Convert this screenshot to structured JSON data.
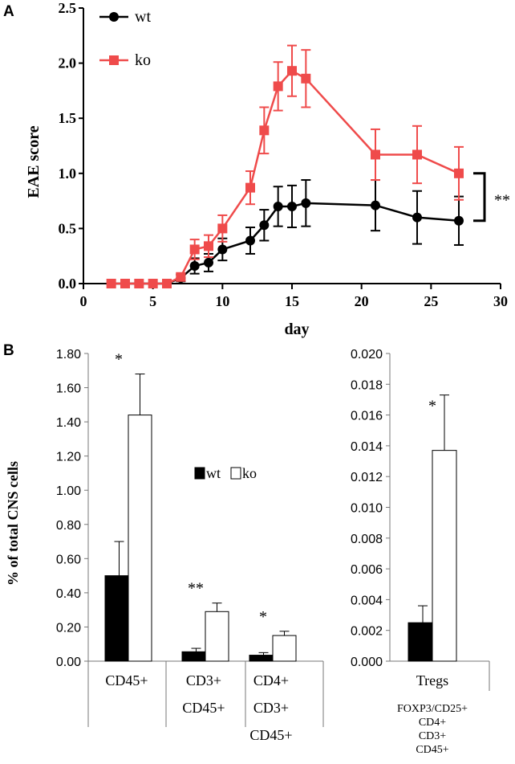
{
  "panel_labels": {
    "a": "A",
    "b": "B"
  },
  "colors": {
    "wt": "#000000",
    "ko": "#ef4b4b",
    "ko_bar": "#ffffff"
  },
  "chart_data": [
    {
      "id": "panel-a",
      "type": "line",
      "xlabel": "day",
      "ylabel": "EAE score",
      "xlim": [
        0,
        30
      ],
      "ylim": [
        0,
        2.5
      ],
      "x_ticks": [
        "0",
        "5",
        "10",
        "15",
        "20",
        "25",
        "30"
      ],
      "y_ticks": [
        "0.0",
        "0.5",
        "1.0",
        "1.5",
        "2.0",
        "2.5"
      ],
      "x_tick_values": [
        0,
        5,
        10,
        15,
        20,
        25,
        30
      ],
      "y_tick_values": [
        0,
        0.5,
        1.0,
        1.5,
        2.0,
        2.5
      ],
      "legend": [
        "wt",
        "ko"
      ],
      "significance": "**",
      "series": [
        {
          "name": "wt",
          "x": [
            2,
            3,
            4,
            5,
            6,
            7,
            8,
            9,
            10,
            12,
            13,
            14,
            15,
            16,
            21,
            24,
            27
          ],
          "y": [
            0,
            0,
            0,
            0,
            0,
            0.05,
            0.16,
            0.19,
            0.31,
            0.39,
            0.53,
            0.7,
            0.7,
            0.73,
            0.71,
            0.6,
            0.57
          ],
          "err": [
            0,
            0,
            0,
            0,
            0,
            0.03,
            0.07,
            0.08,
            0.1,
            0.12,
            0.14,
            0.18,
            0.19,
            0.21,
            0.23,
            0.24,
            0.22
          ]
        },
        {
          "name": "ko",
          "x": [
            2,
            3,
            4,
            5,
            6,
            7,
            8,
            9,
            10,
            12,
            13,
            14,
            15,
            16,
            21,
            24,
            27
          ],
          "y": [
            0,
            0,
            0,
            0,
            0,
            0.06,
            0.31,
            0.34,
            0.5,
            0.87,
            1.39,
            1.79,
            1.93,
            1.86,
            1.17,
            1.17,
            1.0
          ],
          "err": [
            0,
            0,
            0,
            0,
            0,
            0.03,
            0.09,
            0.1,
            0.12,
            0.15,
            0.21,
            0.22,
            0.23,
            0.26,
            0.23,
            0.26,
            0.24
          ]
        }
      ]
    },
    {
      "id": "panel-b-left",
      "type": "bar",
      "ylabel": "% of total CNS cells",
      "ylim": [
        0,
        1.8
      ],
      "y_ticks": [
        "0.00",
        "0.20",
        "0.40",
        "0.60",
        "0.80",
        "1.00",
        "1.20",
        "1.40",
        "1.60",
        "1.80"
      ],
      "y_tick_values": [
        0,
        0.2,
        0.4,
        0.6,
        0.8,
        1.0,
        1.2,
        1.4,
        1.6,
        1.8
      ],
      "legend": [
        "wt",
        "ko"
      ],
      "categories": [
        {
          "lines": [
            "CD45+"
          ]
        },
        {
          "lines": [
            "CD3+",
            "CD45+"
          ]
        },
        {
          "lines": [
            "CD4+",
            "CD3+",
            "CD45+"
          ]
        }
      ],
      "series": [
        {
          "name": "wt",
          "values": [
            0.5,
            0.055,
            0.035
          ],
          "err": [
            0.2,
            0.02,
            0.015
          ]
        },
        {
          "name": "ko",
          "values": [
            1.44,
            0.29,
            0.15
          ],
          "err": [
            0.24,
            0.05,
            0.025
          ]
        }
      ],
      "significance": [
        "*",
        "**",
        "*"
      ]
    },
    {
      "id": "panel-b-right",
      "type": "bar",
      "ylim": [
        0,
        0.02
      ],
      "y_ticks": [
        "0.000",
        "0.002",
        "0.004",
        "0.006",
        "0.008",
        "0.010",
        "0.012",
        "0.014",
        "0.016",
        "0.018",
        "0.020"
      ],
      "y_tick_values": [
        0,
        0.002,
        0.004,
        0.006,
        0.008,
        0.01,
        0.012,
        0.014,
        0.016,
        0.018,
        0.02
      ],
      "categories": [
        {
          "lines": [
            "Tregs"
          ]
        }
      ],
      "sublabel_lines": [
        "FOXP3/CD25+",
        "CD4+",
        "CD3+",
        "CD45+"
      ],
      "series": [
        {
          "name": "wt",
          "values": [
            0.0025
          ],
          "err": [
            0.0011
          ]
        },
        {
          "name": "ko",
          "values": [
            0.0137
          ],
          "err": [
            0.0036
          ]
        }
      ],
      "significance": [
        "*"
      ]
    }
  ]
}
